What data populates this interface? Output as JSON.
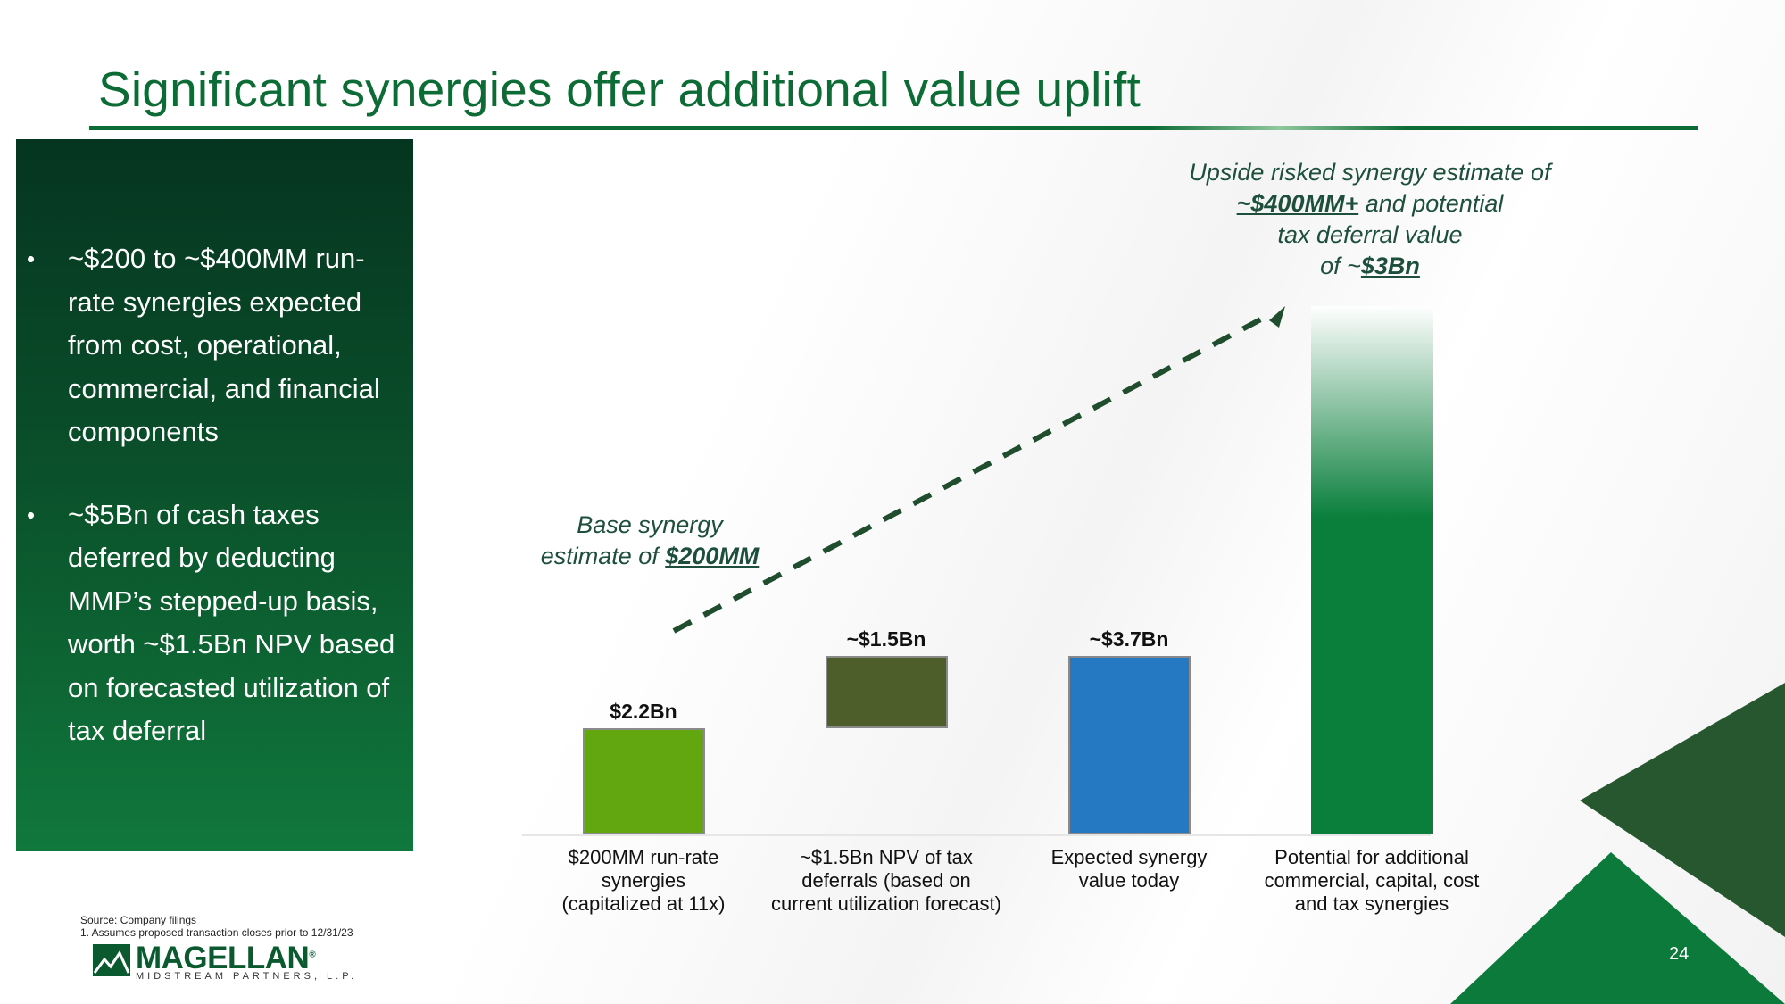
{
  "slide": {
    "title": "Significant synergies offer additional value uplift",
    "page_number": "24"
  },
  "side_panel": {
    "bullet_symbol": "•",
    "bullets": [
      "~$200 to ~$400MM run-rate synergies expected from cost, operational, commercial, and financial components",
      "~$5Bn of cash taxes deferred by deducting MMP’s stepped-up basis, worth ~$1.5Bn NPV based on forecasted utilization of tax deferral"
    ]
  },
  "annotations": {
    "base": {
      "line1": "Base synergy",
      "line2_prefix": "estimate of ",
      "line2_value": "$200MM"
    },
    "upside": {
      "line1": "Upside risked synergy estimate of",
      "line2_value": "~$400MM+",
      "line2_suffix": " and potential",
      "line3": "tax deferral value",
      "line4_prefix": "of ~",
      "line4_value": "$3Bn"
    }
  },
  "chart_data": {
    "type": "bar",
    "subtype": "waterfall",
    "title": "",
    "xlabel": "",
    "ylabel": "",
    "unit": "$Bn",
    "categories": [
      "$200MM run-rate synergies (capitalized at 11x)",
      "~$1.5Bn NPV of tax deferrals (based on current utilization forecast)",
      "Expected synergy value today",
      "Potential for additional commercial, capital, cost and tax synergies"
    ],
    "category_lines": [
      [
        "$200MM run-rate",
        "synergies",
        "(capitalized at 11x)"
      ],
      [
        "~$1.5Bn NPV of tax",
        "deferrals (based on",
        "current utilization forecast)"
      ],
      [
        "Expected synergy",
        "value today"
      ],
      [
        "Potential for additional",
        "commercial, capital, cost",
        "and tax synergies"
      ]
    ],
    "bars": [
      {
        "category_index": 0,
        "base": 0,
        "value": 2.2,
        "label": "$2.2Bn",
        "color": "#62a70f",
        "role": "increase"
      },
      {
        "category_index": 1,
        "base": 2.2,
        "value": 1.5,
        "label": "~$1.5Bn",
        "color": "#4e5e2b",
        "role": "increase"
      },
      {
        "category_index": 2,
        "base": 0,
        "value": 3.7,
        "label": "~$3.7Bn",
        "color": "#2479c2",
        "role": "total"
      },
      {
        "category_index": 3,
        "base": 0,
        "value": 11.0,
        "label": "",
        "color": "#0a7f3c",
        "role": "potential"
      }
    ],
    "ylim": [
      0,
      11
    ],
    "grid": false,
    "legend": "none"
  },
  "footer": {
    "source": "Source: Company filings",
    "note": "1.  Assumes proposed transaction closes prior to 12/31/23",
    "logo_name": "MAGELLAN",
    "logo_mark": "®",
    "logo_sub": "MIDSTREAM PARTNERS, L.P."
  },
  "colors": {
    "brand_green": "#0d6b35",
    "dark_green": "#053520",
    "arrow": "#1f4d2d"
  }
}
